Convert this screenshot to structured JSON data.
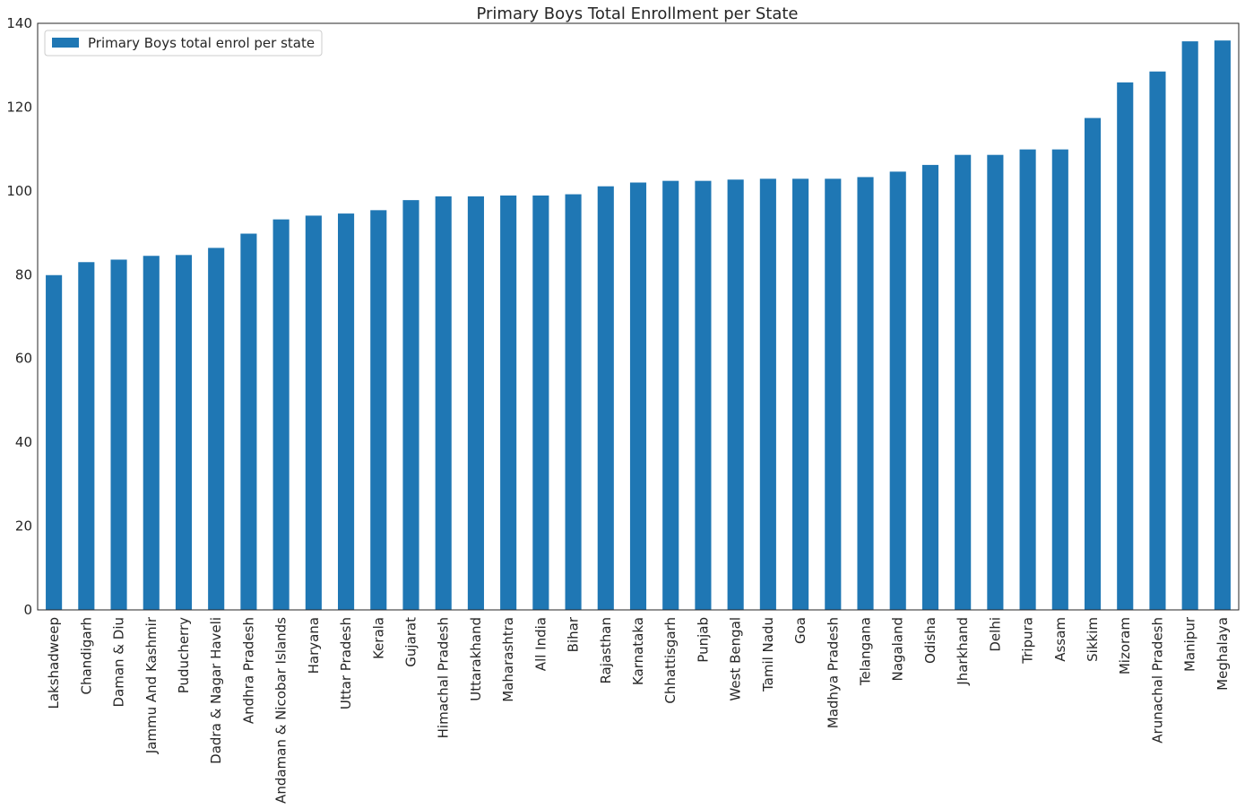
{
  "chart_data": {
    "type": "bar",
    "title": "Primary Boys Total Enrollment per State",
    "xlabel": "",
    "ylabel": "",
    "ylim": [
      0,
      140
    ],
    "yticks": [
      0,
      20,
      40,
      60,
      80,
      100,
      120,
      140
    ],
    "grid": false,
    "legend_position": "top-left",
    "categories": [
      "Lakshadweep",
      "Chandigarh",
      "Daman & Diu",
      "Jammu And Kashmir",
      "Puducherry",
      "Dadra & Nagar Haveli",
      "Andhra Pradesh",
      "Andaman & Nicobar Islands",
      "Haryana",
      "Uttar Pradesh",
      "Kerala",
      "Gujarat",
      "Himachal Pradesh",
      "Uttarakhand",
      "Maharashtra",
      "All India",
      "Bihar",
      "Rajasthan",
      "Karnataka",
      "Chhattisgarh",
      "Punjab",
      "West Bengal",
      "Tamil Nadu",
      "Goa",
      "Madhya Pradesh",
      "Telangana",
      "Nagaland",
      "Odisha",
      "Jharkhand",
      "Delhi",
      "Tripura",
      "Assam",
      "Sikkim",
      "Mizoram",
      "Arunachal Pradesh",
      "Manipur",
      "Meghalaya"
    ],
    "series": [
      {
        "name": "Primary Boys total enrol per state",
        "color": "#1f77b4",
        "values": [
          79.9,
          83.0,
          83.6,
          84.5,
          84.7,
          86.4,
          89.8,
          93.2,
          94.1,
          94.6,
          95.4,
          97.8,
          98.7,
          98.7,
          98.9,
          98.9,
          99.2,
          101.1,
          102.0,
          102.4,
          102.4,
          102.7,
          102.9,
          102.9,
          102.9,
          103.3,
          104.6,
          106.2,
          108.6,
          108.6,
          109.9,
          109.9,
          117.4,
          125.9,
          128.5,
          135.7,
          135.9
        ]
      }
    ]
  }
}
